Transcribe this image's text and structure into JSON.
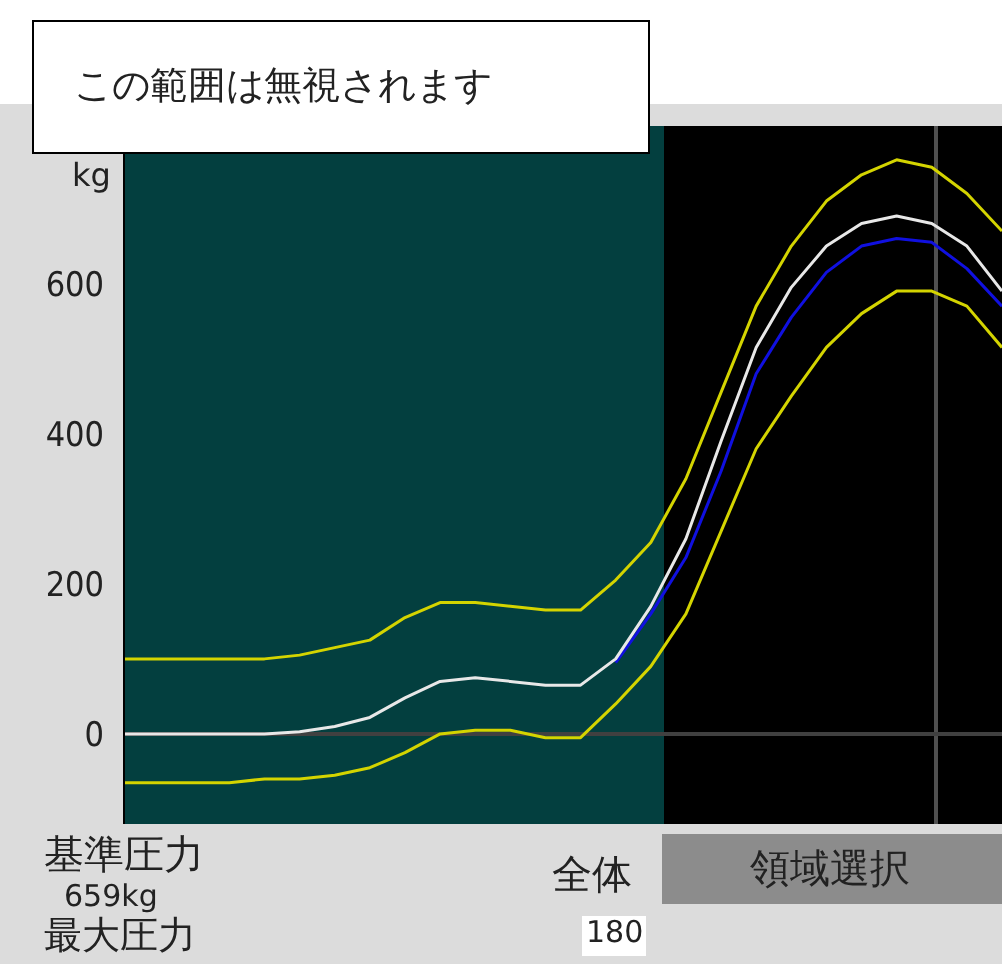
{
  "chart_data": {
    "type": "line",
    "ylabel": "kg",
    "categories": [
      null,
      null,
      null,
      null,
      null,
      null,
      null,
      null,
      null,
      null,
      null,
      null,
      null,
      null,
      null,
      null,
      null,
      null,
      null,
      null,
      null,
      null,
      null,
      null,
      null,
      null
    ],
    "ylim": [
      -120,
      810
    ],
    "yticks": [
      0,
      200,
      400,
      600
    ],
    "tick_labels": "y",
    "grid": false,
    "legend": false,
    "marker": "none",
    "line_style": "solid",
    "series": [
      {
        "color": "#d4d400",
        "values": [
          100,
          100,
          100,
          100,
          100,
          105,
          115,
          125,
          155,
          175,
          175,
          170,
          165,
          165,
          205,
          255,
          340,
          455,
          570,
          650,
          710,
          745,
          765,
          755,
          720,
          670
        ]
      },
      {
        "color": "#d4d400",
        "values": [
          -65,
          -65,
          -65,
          -65,
          -60,
          -60,
          -55,
          -45,
          -25,
          0,
          5,
          5,
          -5,
          -5,
          40,
          90,
          160,
          270,
          380,
          450,
          515,
          560,
          590,
          590,
          570,
          515
        ]
      },
      {
        "color": "#1010e0",
        "values": [
          null,
          null,
          null,
          null,
          null,
          null,
          null,
          null,
          null,
          null,
          null,
          null,
          null,
          null,
          95,
          160,
          235,
          350,
          480,
          555,
          615,
          650,
          660,
          655,
          620,
          570
        ]
      },
      {
        "color": "#e8e8e8",
        "values": [
          0,
          0,
          0,
          0,
          0,
          3,
          10,
          22,
          48,
          70,
          75,
          70,
          65,
          65,
          100,
          170,
          260,
          390,
          515,
          595,
          650,
          680,
          690,
          680,
          650,
          590
        ]
      }
    ],
    "ref_lines": [
      {
        "axis": "y",
        "value": 0,
        "color": "#404040"
      }
    ],
    "annotations": [
      "この範囲は無視されます",
      "基準圧力",
      "659kg",
      "最大圧力",
      "全体",
      "180",
      "領域選択"
    ]
  }
}
